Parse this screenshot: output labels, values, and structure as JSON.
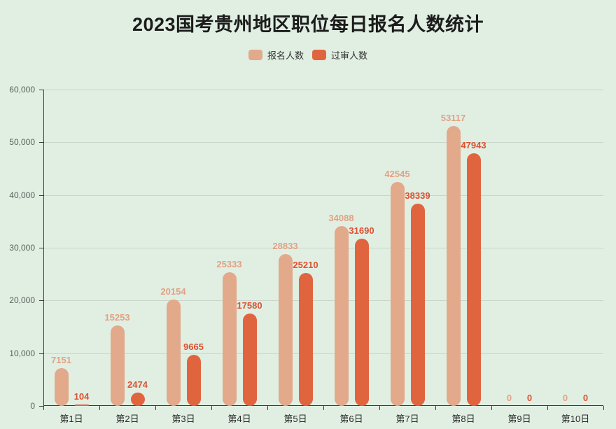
{
  "title": "2023国考贵州地区职位每日报名人数统计",
  "colors": {
    "background": "#e1efe3",
    "axis": "#3a3a3a",
    "gridline": "#c9d4ca",
    "title_text": "#1c1c1c"
  },
  "legend": [
    {
      "label": "报名人数",
      "color": "#e2a98b"
    },
    {
      "label": "过审人数",
      "color": "#e0653f"
    }
  ],
  "chart_data": {
    "type": "bar",
    "title": "2023国考贵州地区职位每日报名人数统计",
    "categories": [
      "第1日",
      "第2日",
      "第3日",
      "第4日",
      "第5日",
      "第6日",
      "第7日",
      "第8日",
      "第9日",
      "第10日"
    ],
    "series": [
      {
        "name": "报名人数",
        "color": "#e2a98b",
        "label_color": "#e2a183",
        "values": [
          7151,
          15253,
          20154,
          25333,
          28833,
          34088,
          42545,
          53117,
          0,
          0
        ]
      },
      {
        "name": "过审人数",
        "color": "#e0653f",
        "label_color": "#dc5130",
        "values": [
          104,
          2474,
          9665,
          17580,
          25210,
          31690,
          38339,
          47943,
          0,
          0
        ]
      }
    ],
    "xlabel": "",
    "ylabel": "",
    "ylim": [
      0,
      60000
    ],
    "y_ticks": [
      0,
      10000,
      20000,
      30000,
      40000,
      50000,
      60000
    ],
    "y_tick_labels": [
      "0",
      "10,000",
      "20,000",
      "30,000",
      "40,000",
      "50,000",
      "60,000"
    ],
    "grid": true,
    "legend_position": "top",
    "bar_shape": "rounded-pill",
    "value_labels": "above-bars"
  }
}
